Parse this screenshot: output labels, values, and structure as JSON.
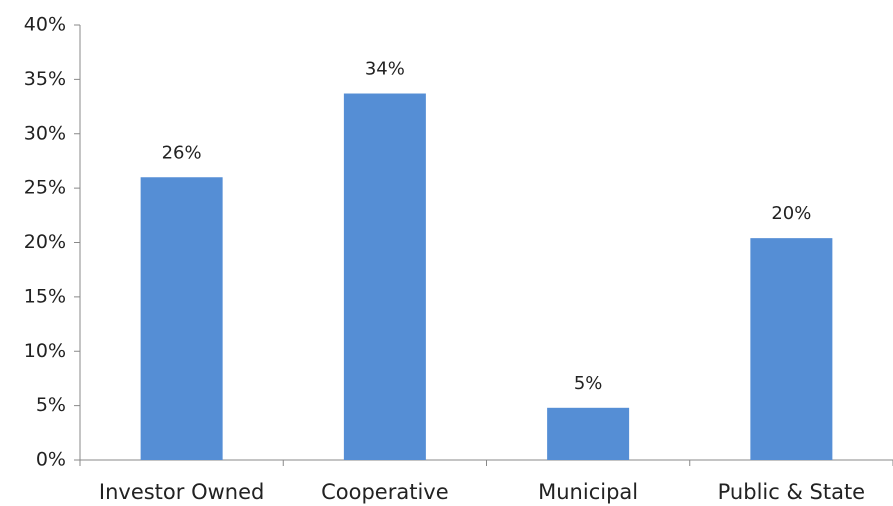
{
  "chart_data": {
    "type": "bar",
    "categories": [
      "Investor Owned",
      "Cooperative",
      "Municipal",
      "Public & State"
    ],
    "values": [
      26,
      33.7,
      4.8,
      20.4
    ],
    "value_labels": [
      "26%",
      "34%",
      "5%",
      "20%"
    ],
    "color": "#558ed5",
    "ylim": [
      0,
      40
    ],
    "yticks": [
      {
        "value": 0,
        "label": "0%"
      },
      {
        "value": 5,
        "label": "5%"
      },
      {
        "value": 10,
        "label": "10%"
      },
      {
        "value": 15,
        "label": "15%"
      },
      {
        "value": 20,
        "label": "20%"
      },
      {
        "value": 25,
        "label": "25%"
      },
      {
        "value": 30,
        "label": "30%"
      },
      {
        "value": 35,
        "label": "35%"
      },
      {
        "value": 40,
        "label": "40%"
      }
    ],
    "grid": false
  }
}
